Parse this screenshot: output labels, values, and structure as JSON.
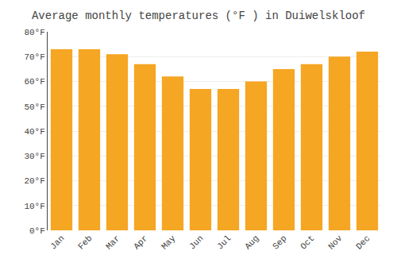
{
  "chart_data": {
    "type": "bar",
    "title": "Average monthly temperatures (°F ) in Duiwelskloof",
    "categories": [
      "Jan",
      "Feb",
      "Mar",
      "Apr",
      "May",
      "Jun",
      "Jul",
      "Aug",
      "Sep",
      "Oct",
      "Nov",
      "Dec"
    ],
    "values": [
      73,
      73,
      71,
      67,
      62,
      57,
      57,
      60,
      65,
      67,
      70,
      72
    ],
    "color": "#F5A623",
    "ylim": [
      0,
      80
    ],
    "yticks": [
      {
        "value": 0,
        "label": "0°F"
      },
      {
        "value": 10,
        "label": "10°F"
      },
      {
        "value": 20,
        "label": "20°F"
      },
      {
        "value": 30,
        "label": "30°F"
      },
      {
        "value": 40,
        "label": "40°F"
      },
      {
        "value": 50,
        "label": "50°F"
      },
      {
        "value": 60,
        "label": "60°F"
      },
      {
        "value": 70,
        "label": "70°F"
      },
      {
        "value": 80,
        "label": "80°F"
      }
    ],
    "grid": true
  }
}
